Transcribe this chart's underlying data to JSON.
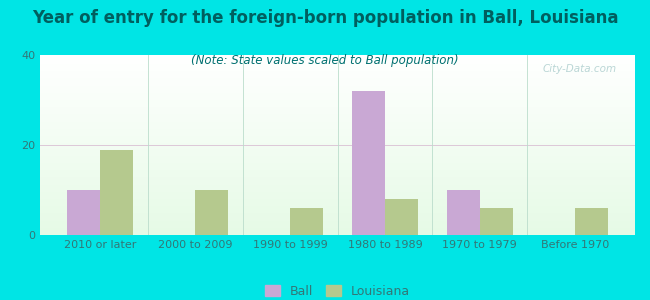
{
  "title": "Year of entry for the foreign-born population in Ball, Louisiana",
  "subtitle": "(Note: State values scaled to Ball population)",
  "categories": [
    "2010 or later",
    "2000 to 2009",
    "1990 to 1999",
    "1980 to 1989",
    "1970 to 1979",
    "Before 1970"
  ],
  "ball_values": [
    10,
    0,
    0,
    32,
    10,
    0
  ],
  "louisiana_values": [
    19,
    10,
    6,
    8,
    6,
    6
  ],
  "ball_color": "#c9a8d4",
  "louisiana_color": "#b5c98e",
  "background_outer": "#00e5e5",
  "ylim": [
    0,
    40
  ],
  "yticks": [
    0,
    20,
    40
  ],
  "bar_width": 0.35,
  "title_fontsize": 12,
  "subtitle_fontsize": 8.5,
  "tick_fontsize": 8,
  "legend_fontsize": 9,
  "title_color": "#005f5f",
  "subtitle_color": "#007070",
  "tick_color": "#337777",
  "watermark": "City-Data.com"
}
